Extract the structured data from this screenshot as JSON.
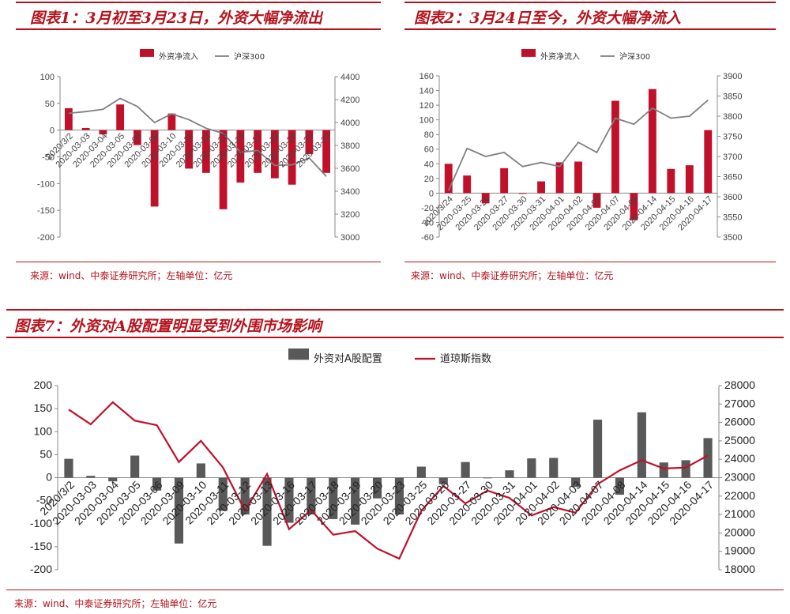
{
  "chart1": {
    "title": "图表1：3月初至3月23日，外资大幅净流出",
    "source": "来源：wind、中泰证券研究所；左轴单位：亿元",
    "legend": [
      "外资净流入",
      "沪深300"
    ],
    "colors": {
      "bar": "#c0102a",
      "line": "#7f7f7f"
    },
    "chart_data": {
      "type": "bar+line",
      "categories": [
        "2020/3/2",
        "2020-03-03",
        "2020-03-04",
        "2020-03-05",
        "2020-03-06",
        "2020-03-09",
        "2020-03-10",
        "2020-03-11",
        "2020-03-12",
        "2020-03-13",
        "2020-03-16",
        "2020-03-17",
        "2020-03-18",
        "2020-03-19",
        "2020-03-20",
        "2020-03-23"
      ],
      "series": [
        {
          "name": "外资净流入",
          "axis": "left",
          "values": [
            41,
            4,
            -8,
            48,
            -28,
            -143,
            31,
            -72,
            -80,
            -148,
            -98,
            -80,
            -90,
            -102,
            -45,
            -80
          ]
        },
        {
          "name": "沪深300",
          "axis": "right",
          "values": [
            4080,
            4095,
            4115,
            4210,
            4140,
            4000,
            4075,
            4025,
            3950,
            3905,
            3740,
            3755,
            3625,
            3630,
            3690,
            3530
          ]
        }
      ],
      "ylim_left": [
        -200,
        100
      ],
      "yticks_left": [
        -200,
        -150,
        -100,
        -50,
        0,
        50,
        100
      ],
      "ylim_right": [
        3000,
        4400
      ],
      "yticks_right": [
        3000,
        3200,
        3400,
        3600,
        3800,
        4000,
        4200,
        4400
      ]
    }
  },
  "chart2": {
    "title": "图表2：3月24日至今，外资大幅净流入",
    "source": "来源：wind、中泰证券研究所；左轴单位：亿元",
    "legend": [
      "外资净流入",
      "沪深300"
    ],
    "colors": {
      "bar": "#c0102a",
      "line": "#7f7f7f"
    },
    "chart_data": {
      "type": "bar+line",
      "categories": [
        "2020/3/24",
        "2020-03-25",
        "2020-03-26",
        "2020-03-27",
        "2020-03-30",
        "2020-03-31",
        "2020-04-01",
        "2020-04-02",
        "2020-04-03",
        "2020-04-07",
        "2020-04-08",
        "2020-04-14",
        "2020-04-15",
        "2020-04-16",
        "2020-04-17"
      ],
      "series": [
        {
          "name": "外资净流入",
          "axis": "left",
          "values": [
            40,
            24,
            -14,
            34,
            -1,
            16,
            42,
            43,
            -20,
            126,
            -37,
            142,
            33,
            38,
            86
          ]
        },
        {
          "name": "沪深300",
          "axis": "right",
          "values": [
            3615,
            3720,
            3700,
            3710,
            3675,
            3685,
            3675,
            3735,
            3710,
            3795,
            3780,
            3820,
            3795,
            3800,
            3840
          ]
        }
      ],
      "ylim_left": [
        -60,
        160
      ],
      "yticks_left": [
        -60,
        -40,
        -20,
        0,
        20,
        40,
        60,
        80,
        100,
        120,
        140,
        160
      ],
      "ylim_right": [
        3500,
        3900
      ],
      "yticks_right": [
        3500,
        3550,
        3600,
        3650,
        3700,
        3750,
        3800,
        3850,
        3900
      ]
    }
  },
  "chart3": {
    "title": "图表7：外资对A股配置明显受到外围市场影响",
    "source": "来源：wind、中泰证券研究所；左轴单位：亿元",
    "legend": [
      "外资对A股配置",
      "道琼斯指数"
    ],
    "colors": {
      "bar": "#595959",
      "line": "#c0102a"
    },
    "chart_data": {
      "type": "bar+line",
      "categories": [
        "2020/3/2",
        "2020-03-03",
        "2020-03-04",
        "2020-03-05",
        "2020-03-06",
        "2020-03-09",
        "2020-03-10",
        "2020-03-11",
        "2020-03-12",
        "2020-03-13",
        "2020-03-16",
        "2020-03-17",
        "2020-03-18",
        "2020-03-19",
        "2020-03-20",
        "2020-03-23",
        "2020-03-25",
        "2020-03-26",
        "2020-03-27",
        "2020-03-30",
        "2020-03-31",
        "2020-04-01",
        "2020-04-02",
        "2020-04-03",
        "2020-04-07",
        "2020-04-08",
        "2020-04-14",
        "2020-04-15",
        "2020-04-16",
        "2020-04-17"
      ],
      "series": [
        {
          "name": "外资对A股配置",
          "axis": "left",
          "values": [
            41,
            4,
            -8,
            48,
            -28,
            -143,
            31,
            -72,
            -80,
            -148,
            -98,
            -80,
            -90,
            -102,
            -45,
            -80,
            24,
            -14,
            34,
            -1,
            16,
            42,
            43,
            -20,
            126,
            -37,
            142,
            33,
            38,
            86
          ]
        },
        {
          "name": "道琼斯指数",
          "axis": "right",
          "values": [
            26700,
            25900,
            27100,
            26100,
            25850,
            23850,
            25000,
            23550,
            21200,
            23200,
            20200,
            21250,
            19900,
            20100,
            19150,
            18600,
            21200,
            22550,
            21600,
            22300,
            21900,
            20950,
            21400,
            21100,
            22650,
            23400,
            23950,
            23500,
            23550,
            24200
          ]
        }
      ],
      "ylim_left": [
        -200,
        200
      ],
      "yticks_left": [
        -200,
        -150,
        -100,
        -50,
        0,
        50,
        100,
        150,
        200
      ],
      "ylim_right": [
        18000,
        28000
      ],
      "yticks_right": [
        18000,
        19000,
        20000,
        21000,
        22000,
        23000,
        24000,
        25000,
        26000,
        27000,
        28000
      ]
    }
  }
}
